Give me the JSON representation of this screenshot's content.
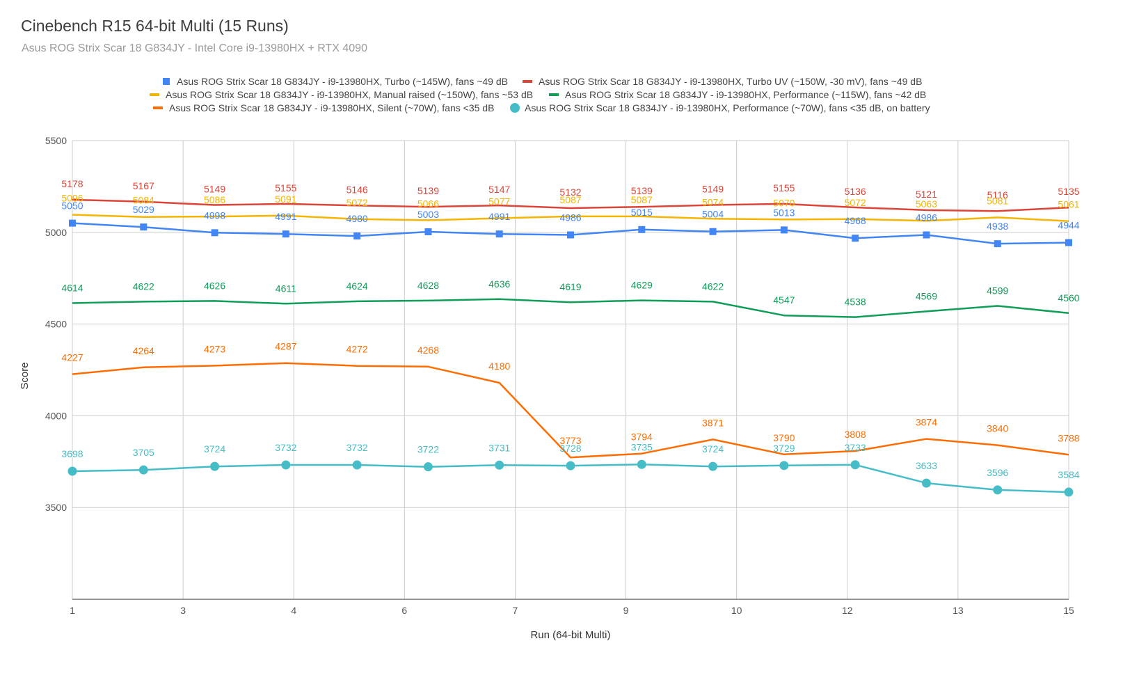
{
  "chart_data": {
    "type": "line",
    "title": "Cinebench R15 64-bit Multi (15 Runs)",
    "subtitle": "Asus ROG Strix Scar 18 G834JY - Intel Core i9-13980HX + RTX 4090",
    "xlabel": "Run (64-bit Multi)",
    "ylabel": "Score",
    "x_ticks": [
      "1",
      "3",
      "4",
      "6",
      "7",
      "9",
      "10",
      "12",
      "13",
      "15"
    ],
    "ylim": [
      3000,
      5500
    ],
    "y_ticks": [
      3500,
      4000,
      4500,
      5000,
      5500
    ],
    "grid": true,
    "legend_position": "top",
    "series": [
      {
        "name": "Asus ROG Strix Scar 18 G834JY - i9-13980HX, Turbo (~145W), fans ~49 dB",
        "color": "#4285f4",
        "marker": "square",
        "values": [
          5050,
          5029,
          4998,
          4991,
          4980,
          5003,
          4991,
          4986,
          5015,
          5004,
          5013,
          4968,
          4986,
          4938,
          4944
        ]
      },
      {
        "name": "Asus ROG Strix Scar 18 G834JY - i9-13980HX, Turbo UV (~150W, -30 mV), fans ~49 dB",
        "color": "#db4437",
        "marker": "none",
        "values": [
          5178,
          5167,
          5149,
          5155,
          5146,
          5139,
          5147,
          5132,
          5139,
          5149,
          5155,
          5136,
          5121,
          5116,
          5135
        ]
      },
      {
        "name": "Asus ROG Strix Scar 18 G834JY - i9-13980HX, Manual raised (~150W), fans ~53 dB",
        "color": "#f4b400",
        "marker": "none",
        "values": [
          5096,
          5084,
          5086,
          5091,
          5072,
          5066,
          5077,
          5087,
          5087,
          5074,
          5070,
          5072,
          5063,
          5081,
          5061
        ]
      },
      {
        "name": "Asus ROG Strix Scar 18 G834JY - i9-13980HX, Performance (~115W), fans ~42 dB",
        "color": "#0f9d58",
        "marker": "none",
        "values": [
          4614,
          4622,
          4626,
          4611,
          4624,
          4628,
          4636,
          4619,
          4629,
          4622,
          4547,
          4538,
          4569,
          4599,
          4560
        ]
      },
      {
        "name": "Asus ROG Strix Scar 18 G834JY - i9-13980HX, Silent (~70W), fans <35 dB",
        "color": "#ff6d01",
        "marker": "none",
        "values": [
          4227,
          4264,
          4273,
          4287,
          4272,
          4268,
          4180,
          3773,
          3794,
          3871,
          3790,
          3808,
          3874,
          3840,
          3788
        ]
      },
      {
        "name": "Asus ROG Strix Scar 18 G834JY - i9-13980HX, Performance (~70W), fans <35 dB, on battery",
        "color": "#46bdc6",
        "marker": "circle",
        "values": [
          3698,
          3705,
          3724,
          3732,
          3732,
          3722,
          3731,
          3728,
          3735,
          3724,
          3729,
          3733,
          3633,
          3596,
          3584
        ]
      }
    ]
  }
}
